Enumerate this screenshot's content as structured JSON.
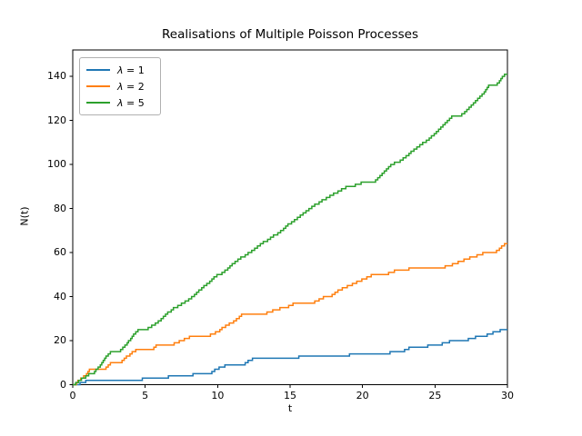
{
  "chart_data": {
    "type": "line",
    "line_style": "step",
    "title": "Realisations of Multiple Poisson Processes",
    "xlabel": "t",
    "ylabel": "N(t)",
    "xlim": [
      0,
      30
    ],
    "ylim": [
      0,
      152
    ],
    "xticks": [
      0,
      5,
      10,
      15,
      20,
      25,
      30
    ],
    "yticks": [
      0,
      20,
      40,
      60,
      80,
      100,
      120,
      140
    ],
    "grid": false,
    "legend_position": "upper left",
    "background_color": "#ffffff",
    "spine_color": "#000000",
    "series": [
      {
        "name": "λ = 1",
        "color": "#1f77b4",
        "final_value": 25,
        "jumps": [
          [
            0.5,
            1
          ],
          [
            0.9,
            2
          ],
          [
            4.8,
            3
          ],
          [
            6.6,
            4
          ],
          [
            8.3,
            5
          ],
          [
            9.6,
            6
          ],
          [
            9.8,
            7
          ],
          [
            10.1,
            8
          ],
          [
            10.5,
            9
          ],
          [
            11.9,
            10
          ],
          [
            12.1,
            11
          ],
          [
            12.4,
            12
          ],
          [
            15.6,
            13
          ],
          [
            19.1,
            14
          ],
          [
            21.9,
            15
          ],
          [
            22.9,
            16
          ],
          [
            23.2,
            17
          ],
          [
            24.5,
            18
          ],
          [
            25.5,
            19
          ],
          [
            26.0,
            20
          ],
          [
            27.3,
            21
          ],
          [
            27.8,
            22
          ],
          [
            28.6,
            23
          ],
          [
            29.0,
            24
          ],
          [
            29.5,
            25
          ]
        ]
      },
      {
        "name": "λ = 2",
        "color": "#ff7f0e",
        "final_value": 64,
        "jumps": [
          [
            0.25,
            1
          ],
          [
            0.35,
            2
          ],
          [
            0.55,
            3
          ],
          [
            0.75,
            4
          ],
          [
            0.95,
            5
          ],
          [
            1.05,
            6
          ],
          [
            1.15,
            7
          ],
          [
            2.3,
            8
          ],
          [
            2.45,
            9
          ],
          [
            2.6,
            10
          ],
          [
            3.4,
            11
          ],
          [
            3.55,
            12
          ],
          [
            3.7,
            13
          ],
          [
            3.95,
            14
          ],
          [
            4.1,
            15
          ],
          [
            4.35,
            16
          ],
          [
            5.6,
            17
          ],
          [
            5.75,
            18
          ],
          [
            7.0,
            19
          ],
          [
            7.35,
            20
          ],
          [
            7.7,
            21
          ],
          [
            8.05,
            22
          ],
          [
            9.5,
            23
          ],
          [
            9.85,
            24
          ],
          [
            10.15,
            25
          ],
          [
            10.3,
            26
          ],
          [
            10.55,
            27
          ],
          [
            10.8,
            28
          ],
          [
            11.1,
            29
          ],
          [
            11.3,
            30
          ],
          [
            11.5,
            31
          ],
          [
            11.65,
            32
          ],
          [
            13.4,
            33
          ],
          [
            13.8,
            34
          ],
          [
            14.3,
            35
          ],
          [
            14.9,
            36
          ],
          [
            15.2,
            37
          ],
          [
            16.7,
            38
          ],
          [
            17.0,
            39
          ],
          [
            17.3,
            40
          ],
          [
            17.9,
            41
          ],
          [
            18.1,
            42
          ],
          [
            18.3,
            43
          ],
          [
            18.6,
            44
          ],
          [
            18.95,
            45
          ],
          [
            19.3,
            46
          ],
          [
            19.6,
            47
          ],
          [
            19.95,
            48
          ],
          [
            20.3,
            49
          ],
          [
            20.6,
            50
          ],
          [
            21.8,
            51
          ],
          [
            22.2,
            52
          ],
          [
            23.2,
            53
          ],
          [
            25.7,
            54
          ],
          [
            26.2,
            55
          ],
          [
            26.6,
            56
          ],
          [
            27.0,
            57
          ],
          [
            27.4,
            58
          ],
          [
            27.9,
            59
          ],
          [
            28.3,
            60
          ],
          [
            29.25,
            61
          ],
          [
            29.45,
            62
          ],
          [
            29.6,
            63
          ],
          [
            29.8,
            64
          ]
        ]
      },
      {
        "name": "λ = 5",
        "color": "#2ca02c",
        "final_value": 141,
        "jumps": [
          [
            0.2,
            1
          ],
          [
            0.4,
            2
          ],
          [
            0.6,
            3
          ],
          [
            0.9,
            4
          ],
          [
            1.1,
            5
          ],
          [
            1.5,
            6
          ],
          [
            1.6,
            7
          ],
          [
            1.75,
            8
          ],
          [
            1.9,
            9
          ],
          [
            2.0,
            10
          ],
          [
            2.1,
            11
          ],
          [
            2.2,
            12
          ],
          [
            2.3,
            13
          ],
          [
            2.45,
            14
          ],
          [
            2.6,
            15
          ],
          [
            3.3,
            16
          ],
          [
            3.45,
            17
          ],
          [
            3.6,
            18
          ],
          [
            3.75,
            19
          ],
          [
            3.85,
            20
          ],
          [
            4.0,
            21
          ],
          [
            4.1,
            22
          ],
          [
            4.2,
            23
          ],
          [
            4.35,
            24
          ],
          [
            4.5,
            25
          ],
          [
            5.2,
            26
          ],
          [
            5.45,
            27
          ],
          [
            5.7,
            28
          ],
          [
            5.9,
            29
          ],
          [
            6.1,
            30
          ],
          [
            6.25,
            31
          ],
          [
            6.4,
            32
          ],
          [
            6.55,
            33
          ],
          [
            6.8,
            34
          ],
          [
            6.95,
            35
          ],
          [
            7.25,
            36
          ],
          [
            7.5,
            37
          ],
          [
            7.75,
            38
          ],
          [
            8.0,
            39
          ],
          [
            8.2,
            40
          ],
          [
            8.4,
            41
          ],
          [
            8.55,
            42
          ],
          [
            8.7,
            43
          ],
          [
            8.9,
            44
          ],
          [
            9.05,
            45
          ],
          [
            9.25,
            46
          ],
          [
            9.45,
            47
          ],
          [
            9.6,
            48
          ],
          [
            9.75,
            49
          ],
          [
            9.95,
            50
          ],
          [
            10.3,
            51
          ],
          [
            10.5,
            52
          ],
          [
            10.7,
            53
          ],
          [
            10.85,
            54
          ],
          [
            11.0,
            55
          ],
          [
            11.2,
            56
          ],
          [
            11.4,
            57
          ],
          [
            11.6,
            58
          ],
          [
            11.9,
            59
          ],
          [
            12.1,
            60
          ],
          [
            12.35,
            61
          ],
          [
            12.55,
            62
          ],
          [
            12.75,
            63
          ],
          [
            12.95,
            64
          ],
          [
            13.15,
            65
          ],
          [
            13.45,
            66
          ],
          [
            13.65,
            67
          ],
          [
            13.85,
            68
          ],
          [
            14.15,
            69
          ],
          [
            14.35,
            70
          ],
          [
            14.55,
            71
          ],
          [
            14.7,
            72
          ],
          [
            14.85,
            73
          ],
          [
            15.1,
            74
          ],
          [
            15.3,
            75
          ],
          [
            15.5,
            76
          ],
          [
            15.7,
            77
          ],
          [
            15.9,
            78
          ],
          [
            16.1,
            79
          ],
          [
            16.3,
            80
          ],
          [
            16.5,
            81
          ],
          [
            16.7,
            82
          ],
          [
            17.0,
            83
          ],
          [
            17.2,
            84
          ],
          [
            17.5,
            85
          ],
          [
            17.75,
            86
          ],
          [
            18.0,
            87
          ],
          [
            18.3,
            88
          ],
          [
            18.55,
            89
          ],
          [
            18.85,
            90
          ],
          [
            19.5,
            91
          ],
          [
            19.9,
            92
          ],
          [
            20.9,
            93
          ],
          [
            21.05,
            94
          ],
          [
            21.2,
            95
          ],
          [
            21.35,
            96
          ],
          [
            21.5,
            97
          ],
          [
            21.65,
            98
          ],
          [
            21.8,
            99
          ],
          [
            21.95,
            100
          ],
          [
            22.2,
            101
          ],
          [
            22.6,
            102
          ],
          [
            22.8,
            103
          ],
          [
            23.0,
            104
          ],
          [
            23.2,
            105
          ],
          [
            23.35,
            106
          ],
          [
            23.55,
            107
          ],
          [
            23.75,
            108
          ],
          [
            23.95,
            109
          ],
          [
            24.15,
            110
          ],
          [
            24.4,
            111
          ],
          [
            24.6,
            112
          ],
          [
            24.75,
            113
          ],
          [
            24.95,
            114
          ],
          [
            25.1,
            115
          ],
          [
            25.25,
            116
          ],
          [
            25.4,
            117
          ],
          [
            25.55,
            118
          ],
          [
            25.7,
            119
          ],
          [
            25.85,
            120
          ],
          [
            26.0,
            121
          ],
          [
            26.15,
            122
          ],
          [
            26.85,
            123
          ],
          [
            27.05,
            124
          ],
          [
            27.2,
            125
          ],
          [
            27.35,
            126
          ],
          [
            27.5,
            127
          ],
          [
            27.65,
            128
          ],
          [
            27.8,
            129
          ],
          [
            27.95,
            130
          ],
          [
            28.1,
            131
          ],
          [
            28.25,
            132
          ],
          [
            28.4,
            133
          ],
          [
            28.5,
            134
          ],
          [
            28.6,
            135
          ],
          [
            28.7,
            136
          ],
          [
            29.3,
            137
          ],
          [
            29.45,
            138
          ],
          [
            29.55,
            139
          ],
          [
            29.65,
            140
          ],
          [
            29.8,
            141
          ]
        ]
      }
    ]
  }
}
